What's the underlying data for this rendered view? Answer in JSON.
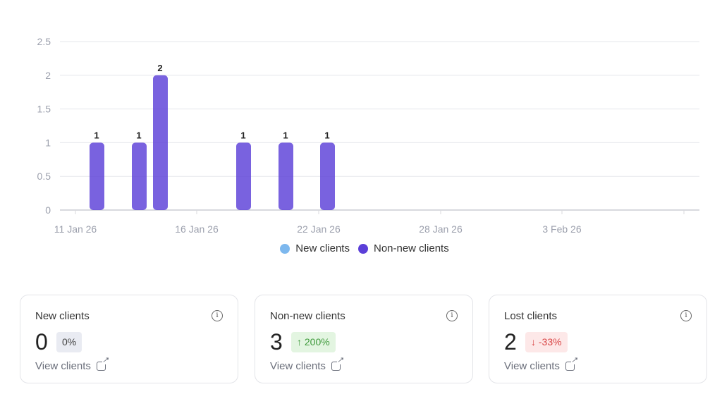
{
  "chart_data": {
    "type": "bar",
    "title": "",
    "xlabel": "",
    "ylabel": "",
    "ylim": [
      0,
      2.5
    ],
    "yticks": [
      "0",
      "0.5",
      "1",
      "1.5",
      "2",
      "2.5"
    ],
    "xticks": [
      "11 Jan 26",
      "16 Jan 26",
      "22 Jan 26",
      "28 Jan 26",
      "3 Feb 26",
      ""
    ],
    "categories": [
      "12 Jan 26",
      "14 Jan 26",
      "15 Jan 26",
      "19 Jan 26",
      "21 Jan 26",
      "23 Jan 26"
    ],
    "series": [
      {
        "name": "New clients",
        "color": "#7db8ee",
        "values": [
          0,
          0,
          0,
          0,
          0,
          0
        ]
      },
      {
        "name": "Non-new clients",
        "color": "#5b3fd8",
        "values": [
          1,
          1,
          2,
          1,
          1,
          1
        ]
      }
    ],
    "legend": "bottom-center",
    "grid": true
  },
  "legend": {
    "new": "New clients",
    "nonnew": "Non-new clients"
  },
  "cards": [
    {
      "title": "New clients",
      "value": "0",
      "change": "0%",
      "link": "View clients"
    },
    {
      "title": "Non-new clients",
      "value": "3",
      "change": "↑ 200%",
      "link": "View clients"
    },
    {
      "title": "Lost clients",
      "value": "2",
      "change": "↓ -33%",
      "link": "View clients"
    }
  ]
}
